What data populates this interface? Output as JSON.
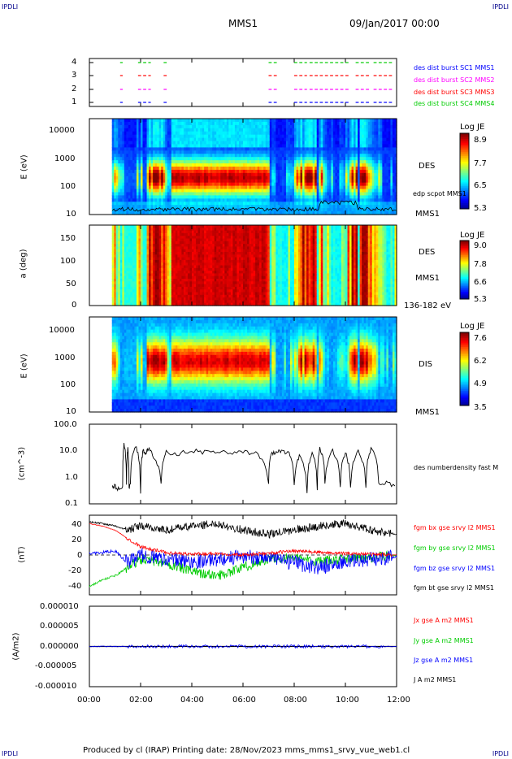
{
  "corner_labels": {
    "tl": "IPDLI",
    "tr": "IPDLI",
    "bl": "IPDLI",
    "br": "IPDLI"
  },
  "header": {
    "title": "MMS1",
    "date": "09/Jan/2017 00:00"
  },
  "footer": "Produced by cl (IRAP)   Printing date: 28/Nov/2023   mms_mms1_srvy_vue_web1.cl",
  "colors": {
    "blue": "#0000ff",
    "red": "#ff0000",
    "green": "#00cc00",
    "magenta": "#ff00ff",
    "black": "#000000"
  },
  "x_ticks": [
    "00:00",
    "02:00",
    "04:00",
    "06:00",
    "08:00",
    "10:00",
    "12:00"
  ],
  "chart_data": [
    {
      "type": "line",
      "id": "burst",
      "x_range_hours": [
        0,
        12
      ],
      "y_ticks": [
        "4",
        "3",
        "2",
        "1"
      ],
      "legend": [
        {
          "text": "des dist burst SC1 MMS1",
          "color": "#0000ff"
        },
        {
          "text": "des dist burst SC2 MMS2",
          "color": "#ff00ff"
        },
        {
          "text": "des dist burst SC3 MMS3",
          "color": "#ff0000"
        },
        {
          "text": "des dist burst SC4 MMS4",
          "color": "#00cc00"
        }
      ],
      "intervals_hours": [
        [
          1.2,
          1.3
        ],
        [
          1.9,
          2.4
        ],
        [
          2.9,
          3.1
        ],
        [
          7.0,
          7.4
        ],
        [
          8.0,
          8.5
        ],
        [
          8.6,
          10.2
        ],
        [
          10.4,
          11.0
        ],
        [
          11.1,
          11.9
        ]
      ]
    },
    {
      "type": "heatmap",
      "id": "des_energy",
      "ylabel": "E (eV)",
      "y_ticks": [
        "10000",
        "1000",
        "100",
        "10"
      ],
      "label_right": "DES",
      "label_bottom": "MMS1",
      "overlay_label": "edp scpot MMS1",
      "colorbar": {
        "title": "Log JE",
        "ticks": [
          "8.9",
          "7.7",
          "6.5",
          "5.3"
        ]
      }
    },
    {
      "type": "heatmap",
      "id": "des_pitch",
      "ylabel": "a (deg)",
      "y_ticks": [
        "150",
        "100",
        "50",
        "0"
      ],
      "label_right": "DES",
      "label_bottom": "MMS1",
      "energy_label": "136-182 eV",
      "colorbar": {
        "title": "Log JE",
        "ticks": [
          "9.0",
          "7.8",
          "6.6",
          "5.3"
        ]
      }
    },
    {
      "type": "heatmap",
      "id": "dis_energy",
      "ylabel": "E (eV)",
      "y_ticks": [
        "10000",
        "1000",
        "100",
        "10"
      ],
      "label_right": "DIS",
      "label_bottom": "MMS1",
      "colorbar": {
        "title": "Log JE",
        "ticks": [
          "7.6",
          "6.2",
          "4.9",
          "3.5"
        ]
      }
    },
    {
      "type": "line",
      "id": "density",
      "ylabel": "(cm^-3)",
      "y_ticks": [
        "100.0",
        "10.0",
        "1.0",
        "0.1"
      ],
      "legend": [
        {
          "text": "des numberdensity fast M",
          "color": "#000000"
        }
      ],
      "series": [
        {
          "x": [
            0.9,
            1.0,
            1.1,
            1.3,
            1.35,
            1.45,
            1.5,
            1.55,
            1.6,
            1.8,
            2.0,
            2.1,
            2.2,
            2.3,
            2.5,
            2.8,
            3.0,
            3.5,
            4.0,
            4.5,
            5.0,
            5.5,
            6.0,
            6.5,
            7.0,
            7.1,
            7.3,
            7.5,
            7.8,
            8.0,
            8.2,
            8.5,
            8.7,
            8.9,
            9.0,
            9.2,
            9.5,
            9.8,
            10.0,
            10.2,
            10.5,
            10.8,
            11.0,
            11.3,
            11.6,
            12.0
          ],
          "y": [
            0.5,
            0.45,
            0.4,
            0.45,
            18.0,
            0.5,
            12.0,
            0.4,
            0.5,
            15.0,
            0.3,
            10.0,
            8.0,
            12.0,
            6.0,
            0.5,
            9.0,
            8.0,
            10.0,
            9.0,
            8.5,
            9.0,
            9.5,
            8.0,
            0.5,
            8.0,
            9.0,
            10.0,
            8.0,
            0.5,
            6.0,
            0.3,
            8.0,
            0.4,
            12.0,
            0.5,
            10.0,
            0.5,
            8.0,
            0.4,
            9.0,
            0.5,
            12.0,
            0.5,
            0.6,
            0.5
          ]
        }
      ]
    },
    {
      "type": "line",
      "id": "fgm",
      "ylabel": "(nT)",
      "y_ticks": [
        "40",
        "20",
        "0",
        "-20",
        "-40"
      ],
      "legend": [
        {
          "text": "fgm bx gse srvy l2 MMS1",
          "color": "#ff0000"
        },
        {
          "text": "fgm by gse srvy l2 MMS1",
          "color": "#00cc00"
        },
        {
          "text": "fgm bz gse srvy l2 MMS1",
          "color": "#0000ff"
        },
        {
          "text": "fgm bt gse srvy l2 MMS1",
          "color": "#000000"
        }
      ],
      "series": [
        {
          "name": "bx",
          "x": [
            0,
            0.5,
            1.0,
            1.5,
            2.0,
            3.0,
            4.0,
            5.0,
            6.0,
            7.0,
            8.0,
            9.0,
            10.0,
            11.0,
            12.0
          ],
          "y": [
            38,
            35,
            30,
            20,
            10,
            3,
            1,
            2,
            0,
            2,
            5,
            3,
            2,
            1,
            0
          ]
        },
        {
          "name": "by",
          "x": [
            0,
            0.5,
            1.0,
            1.5,
            2.0,
            3.0,
            4.0,
            5.0,
            6.0,
            7.0,
            8.0,
            9.0,
            10.0,
            11.0,
            12.0
          ],
          "y": [
            -38,
            -30,
            -25,
            -15,
            -5,
            -10,
            -20,
            -25,
            -15,
            -5,
            -3,
            -8,
            -5,
            -3,
            0
          ]
        },
        {
          "name": "bz",
          "x": [
            0,
            0.5,
            1.0,
            1.5,
            2.0,
            3.0,
            4.0,
            5.0,
            6.0,
            7.0,
            8.0,
            9.0,
            10.0,
            11.0,
            12.0
          ],
          "y": [
            2,
            3,
            5,
            -10,
            0,
            -5,
            -8,
            -5,
            -2,
            -3,
            -10,
            -15,
            -8,
            -5,
            -2
          ]
        },
        {
          "name": "bt",
          "x": [
            0,
            0.5,
            1.0,
            1.5,
            2.0,
            3.0,
            4.0,
            5.0,
            6.0,
            7.0,
            8.0,
            9.0,
            10.0,
            11.0,
            12.0
          ],
          "y": [
            40,
            38,
            35,
            30,
            35,
            30,
            35,
            38,
            30,
            25,
            30,
            35,
            38,
            30,
            25
          ]
        }
      ]
    },
    {
      "type": "line",
      "id": "current",
      "ylabel": "(A/m2)",
      "y_ticks": [
        "0.000010",
        "0.000005",
        "0.000000",
        "-0.000005",
        "-0.000010"
      ],
      "legend": [
        {
          "text": "Jx gse A m2 MMS1",
          "color": "#ff0000"
        },
        {
          "text": "Jy gse A m2 MMS1",
          "color": "#00cc00"
        },
        {
          "text": "Jz gse A m2 MMS1",
          "color": "#0000ff"
        },
        {
          "text": "J A m2 MMS1",
          "color": "#000000"
        }
      ],
      "series": [
        {
          "name": "J",
          "x": [
            0,
            12
          ],
          "y": [
            0,
            0
          ]
        }
      ]
    }
  ]
}
